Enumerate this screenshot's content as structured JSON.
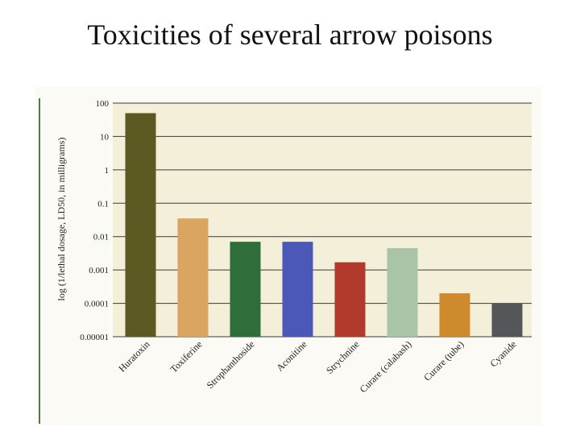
{
  "slide": {
    "title": "Toxicities of several arrow poisons"
  },
  "chart_data": {
    "type": "bar",
    "title": "Toxicities of several arrow poisons",
    "ylabel": "log (1/lethal dosage, LD50, in milligrams)",
    "xlabel": "",
    "y_scale": "log",
    "ylim": [
      1e-05,
      100
    ],
    "y_ticks": [
      "100",
      "10",
      "1",
      "0.1",
      "0.01",
      "0.001",
      "0.0001",
      "0.00001"
    ],
    "grid": "horizontal",
    "categories": [
      "Huratoxin",
      "Toxiferine",
      "Strophanthoside",
      "Aconitine",
      "Strychnine",
      "Curare (calabash)",
      "Curare (tube)",
      "Cyanide"
    ],
    "values": [
      50,
      0.035,
      0.007,
      0.007,
      0.0017,
      0.0045,
      0.0002,
      0.0001
    ],
    "colors": [
      "#5c5a22",
      "#d9a561",
      "#2f6e3a",
      "#4b58b8",
      "#b23a2c",
      "#a9c4a6",
      "#d08a2e",
      "#55565a"
    ]
  }
}
